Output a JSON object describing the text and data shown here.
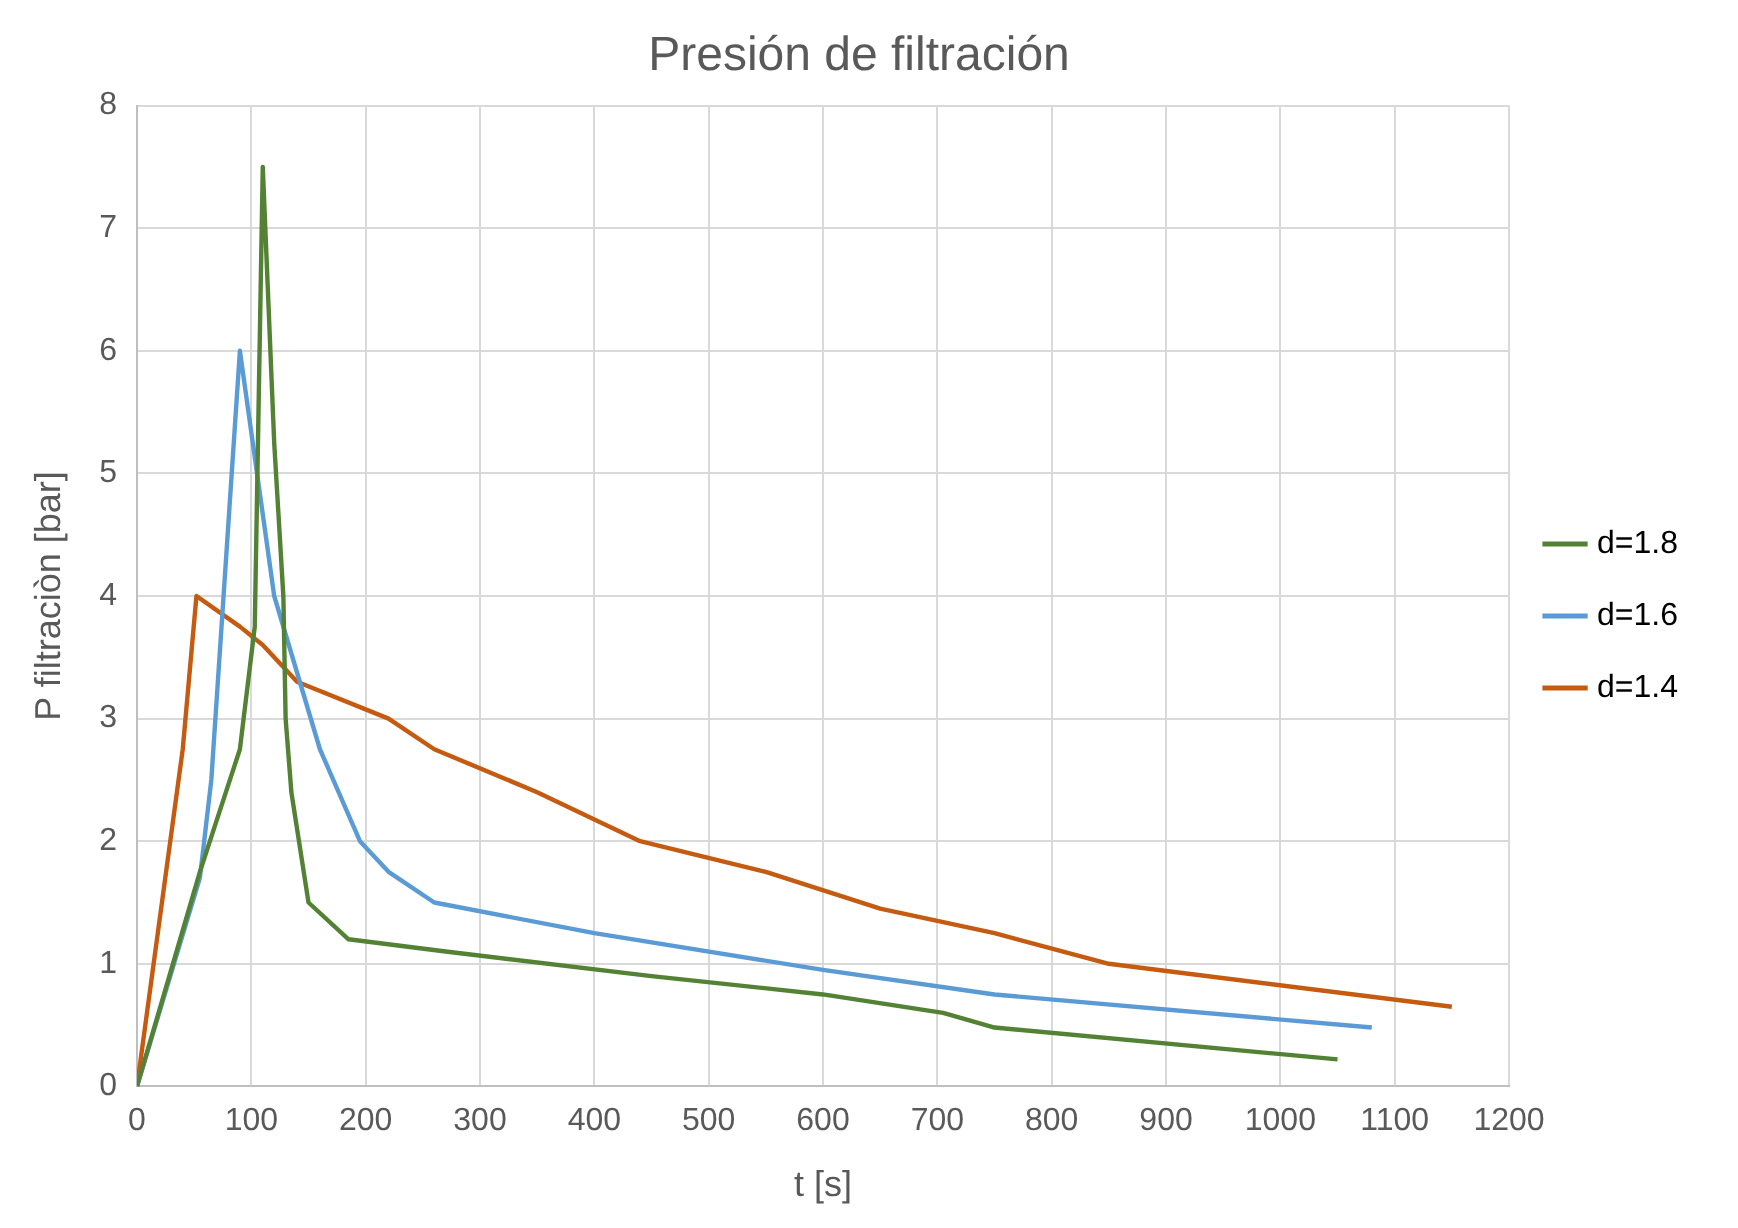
{
  "chart_data": {
    "type": "line",
    "title": "Presión de filtración",
    "xlabel": "t [s]",
    "ylabel": "P filtraciòn [bar]",
    "xlim": [
      0,
      1200
    ],
    "xticks": [
      0,
      100,
      200,
      300,
      400,
      500,
      600,
      700,
      800,
      900,
      1000,
      1100,
      1200
    ],
    "ylim": [
      0,
      8
    ],
    "yticks": [
      0,
      1,
      2,
      3,
      4,
      5,
      6,
      7,
      8
    ],
    "grid": true,
    "legend": "right",
    "marker": "none",
    "line_style": "solid",
    "series": [
      {
        "name": "d=1.8",
        "color": "#548235",
        "x": [
          0,
          55,
          90,
          103,
          110,
          120,
          128,
          130,
          135,
          150,
          185,
          270,
          450,
          600,
          705,
          750,
          1050
        ],
        "values": [
          0,
          1.75,
          2.75,
          3.75,
          7.5,
          5.25,
          4,
          3,
          2.4,
          1.5,
          1.2,
          1.1,
          0.9,
          0.75,
          0.6,
          0.48,
          0.22
        ]
      },
      {
        "name": "d=1.6",
        "color": "#5b9bd5",
        "x": [
          0,
          55,
          65,
          90,
          105,
          120,
          160,
          195,
          220,
          260,
          400,
          600,
          750,
          1080
        ],
        "values": [
          0,
          1.7,
          2.5,
          6,
          5,
          4,
          2.75,
          2,
          1.75,
          1.5,
          1.25,
          0.95,
          0.75,
          0.48
        ]
      },
      {
        "name": "d=1.4",
        "color": "#c55a11",
        "x": [
          0,
          40,
          52,
          90,
          110,
          140,
          220,
          260,
          350,
          440,
          550,
          650,
          750,
          850,
          1150
        ],
        "values": [
          0,
          2.75,
          4,
          3.75,
          3.6,
          3.3,
          3,
          2.75,
          2.4,
          2,
          1.75,
          1.45,
          1.25,
          1,
          0.65
        ]
      }
    ]
  }
}
